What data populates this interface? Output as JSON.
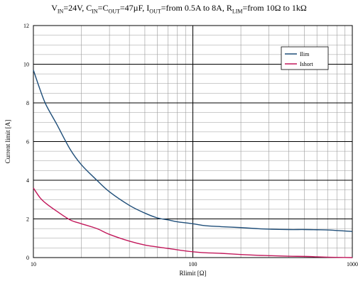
{
  "chart_data": {
    "type": "line",
    "title": {
      "segments": [
        {
          "text": "V"
        },
        {
          "sub": "IN"
        },
        {
          "text": "=24V, C"
        },
        {
          "sub": "IN"
        },
        {
          "text": "=C"
        },
        {
          "sub": "OUT"
        },
        {
          "text": "=47µF, I"
        },
        {
          "sub": "OUT"
        },
        {
          "text": "=from 0.5A to 8A, R"
        },
        {
          "sub": "LIM"
        },
        {
          "text": "=from 10Ω to 1kΩ"
        }
      ]
    },
    "xlabel": "Rlimit [Ω]",
    "ylabel": "Current limit [A]",
    "xscale": "log",
    "xlim": [
      10,
      1000
    ],
    "ylim": [
      0,
      12
    ],
    "xticks": [
      10,
      100,
      1000
    ],
    "xtick_labels": [
      "10",
      "100",
      "1000"
    ],
    "yticks": [
      0,
      2,
      4,
      6,
      8,
      10,
      12
    ],
    "ytick_labels": [
      "0",
      "2",
      "4",
      "6",
      "8",
      "10",
      "12"
    ],
    "grid": true,
    "legend_position": "top-right",
    "series": [
      {
        "name": "Ilim",
        "color": "#1f4e79",
        "x": [
          10,
          11,
          12,
          14,
          17,
          20,
          25,
          30,
          40,
          50,
          60,
          70,
          80,
          100,
          120,
          150,
          200,
          250,
          300,
          400,
          500,
          600,
          700,
          800,
          1000
        ],
        "y": [
          9.7,
          8.7,
          7.9,
          6.9,
          5.6,
          4.8,
          4.0,
          3.4,
          2.7,
          2.3,
          2.05,
          1.95,
          1.85,
          1.75,
          1.65,
          1.6,
          1.55,
          1.5,
          1.47,
          1.45,
          1.45,
          1.44,
          1.43,
          1.4,
          1.35
        ]
      },
      {
        "name": "Ishort",
        "color": "#c2185b",
        "x": [
          10,
          11,
          12,
          14,
          17,
          20,
          25,
          30,
          40,
          50,
          60,
          70,
          80,
          100,
          120,
          150,
          200,
          250,
          300,
          400,
          500,
          600,
          700,
          800,
          1000
        ],
        "y": [
          3.6,
          3.1,
          2.8,
          2.4,
          1.95,
          1.75,
          1.5,
          1.2,
          0.85,
          0.65,
          0.55,
          0.47,
          0.4,
          0.3,
          0.25,
          0.22,
          0.16,
          0.12,
          0.1,
          0.07,
          0.06,
          0.04,
          0.02,
          0.01,
          0.0
        ]
      }
    ]
  }
}
